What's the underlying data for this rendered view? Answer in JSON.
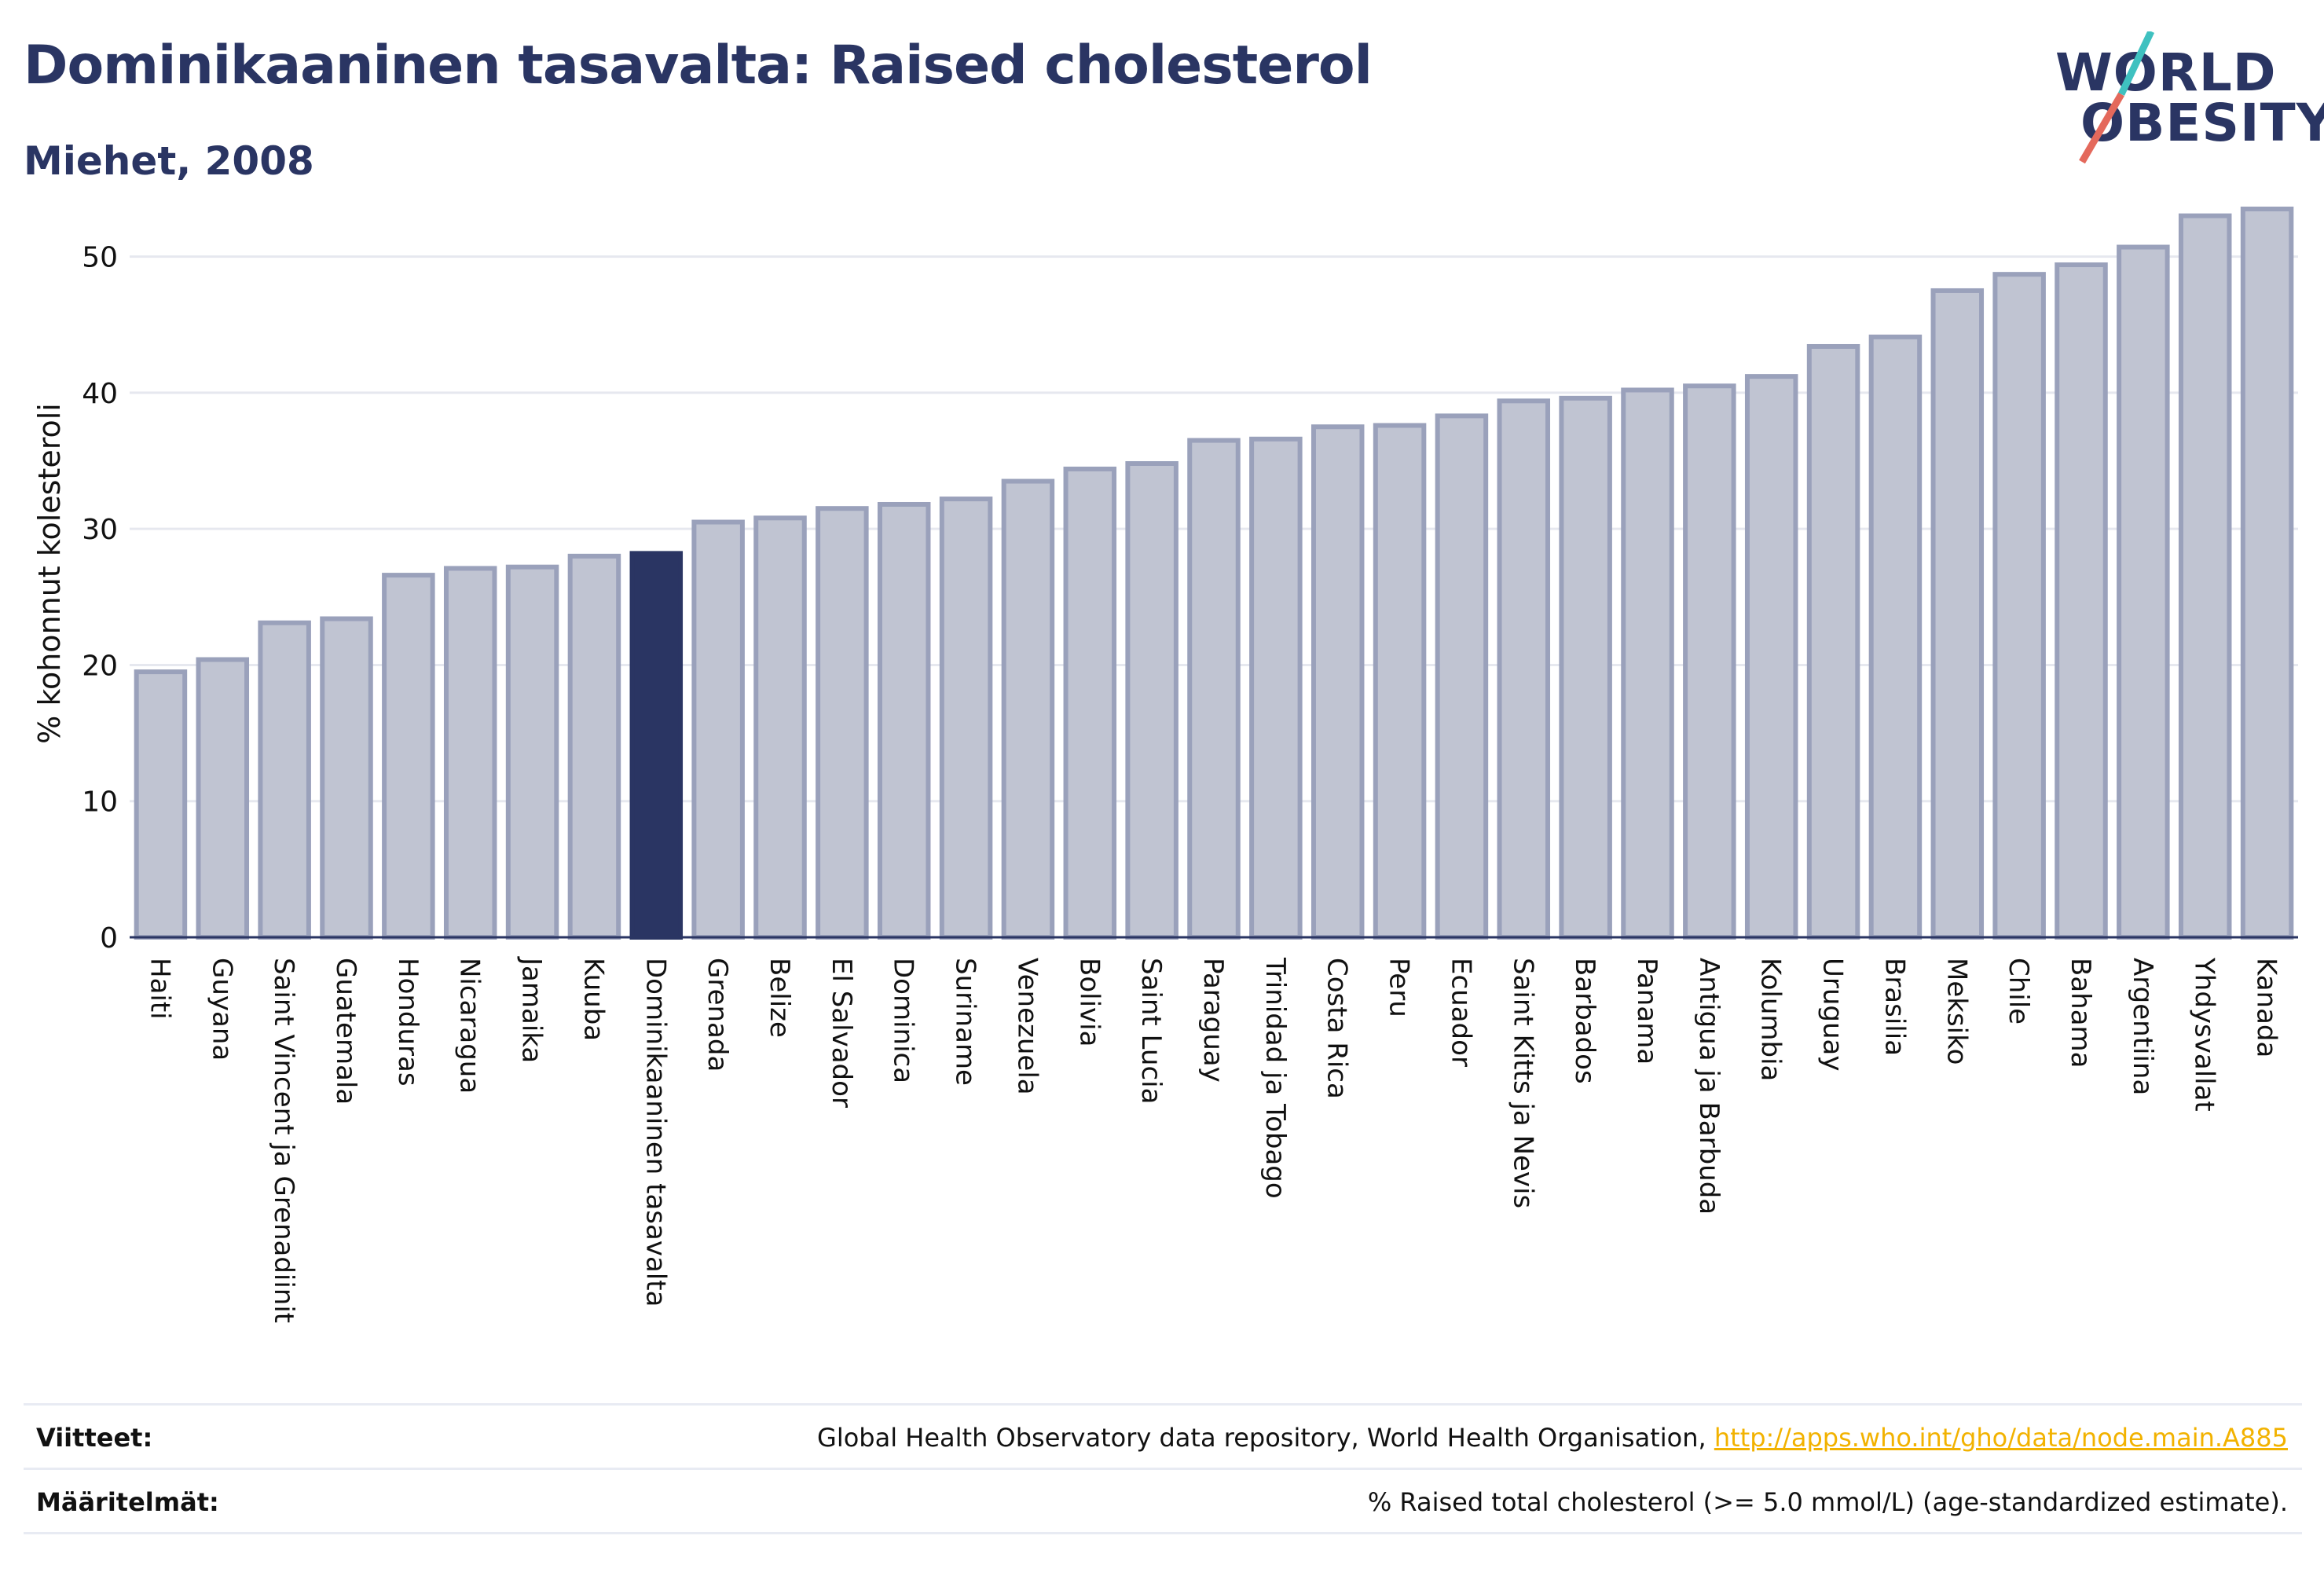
{
  "header": {
    "title": "Dominikaaninen tasavalta: Raised cholesterol",
    "subtitle": "Miehet, 2008"
  },
  "logo": {
    "line1": "WORLD",
    "line2": "OBESITY"
  },
  "colors": {
    "highlight": "#2a3563",
    "bar": "#c0c4d2",
    "bar_stroke": "#9aa1bb",
    "grid": "#e6e8ef",
    "accent_teal": "#3fc1c0",
    "accent_coral": "#e4695c"
  },
  "chart_data": {
    "type": "bar",
    "title": "",
    "xlabel": "",
    "ylabel": "% kohonnut kolesteroli",
    "ylim": [
      0,
      55
    ],
    "yticks": [
      0,
      10,
      20,
      30,
      40,
      50
    ],
    "grid": true,
    "highlight": "Dominikaaninen tasavalta",
    "categories": [
      "Haiti",
      "Guyana",
      "Saint Vincent ja Grenadiinit",
      "Guatemala",
      "Honduras",
      "Nicaragua",
      "Jamaika",
      "Kuuba",
      "Dominikaaninen tasavalta",
      "Grenada",
      "Belize",
      "El Salvador",
      "Dominica",
      "Suriname",
      "Venezuela",
      "Bolivia",
      "Saint Lucia",
      "Paraguay",
      "Trinidad ja Tobago",
      "Costa Rica",
      "Peru",
      "Ecuador",
      "Saint Kitts ja Nevis",
      "Barbados",
      "Panama",
      "Antigua ja Barbuda",
      "Kolumbia",
      "Uruguay",
      "Brasilia",
      "Meksiko",
      "Chile",
      "Bahama",
      "Argentiina",
      "Yhdysvallat",
      "Kanada"
    ],
    "values": [
      19.5,
      20.4,
      23.1,
      23.4,
      26.6,
      27.1,
      27.2,
      28.0,
      28.2,
      30.5,
      30.8,
      31.5,
      31.8,
      32.2,
      33.5,
      34.4,
      34.8,
      36.5,
      36.6,
      37.5,
      37.6,
      38.3,
      39.4,
      39.6,
      40.2,
      40.5,
      41.2,
      43.4,
      44.1,
      47.5,
      48.7,
      49.4,
      50.7,
      53.0,
      53.5
    ]
  },
  "footer": {
    "sources_label": "Viitteet:",
    "sources_text": "Global Health Observatory data repository, World Health Organisation, ",
    "sources_link": "http://apps.who.int/gho/data/node.main.A885",
    "definitions_label": "Määritelmät:",
    "definitions_text": "% Raised total cholesterol (>= 5.0 mmol/L) (age-standardized estimate)."
  }
}
